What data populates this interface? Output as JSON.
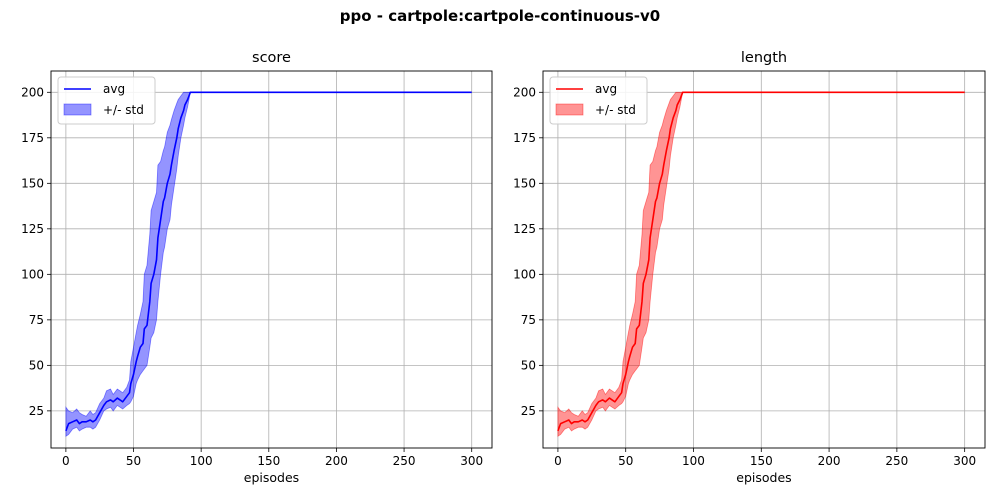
{
  "title": "ppo - cartpole:cartpole-continuous-v0",
  "colors": {
    "score": "#0000ff",
    "length": "#ff0000",
    "grid": "#b0b0b0"
  },
  "chart_data": [
    {
      "type": "line",
      "title": "score",
      "xlabel": "episodes",
      "ylabel": "",
      "xlim": [
        -11,
        315
      ],
      "ylim": [
        4.6,
        211.7
      ],
      "xticks": [
        0,
        50,
        100,
        150,
        200,
        250,
        300
      ],
      "yticks": [
        25,
        50,
        75,
        100,
        125,
        150,
        175,
        200
      ],
      "grid": true,
      "legend_position": "top-left",
      "legend": [
        "avg",
        "+/- std"
      ],
      "series": [
        {
          "name": "avg",
          "x": [
            0,
            2,
            5,
            8,
            10,
            12,
            15,
            18,
            20,
            22,
            25,
            28,
            30,
            33,
            35,
            38,
            40,
            42,
            45,
            47,
            48,
            50,
            52,
            53,
            55,
            57,
            58,
            60,
            62,
            63,
            65,
            67,
            68,
            70,
            72,
            73,
            75,
            77,
            78,
            80,
            82,
            83,
            85,
            87,
            88,
            90,
            91,
            92,
            93,
            300
          ],
          "values": [
            14,
            18,
            19,
            20,
            18,
            19,
            19,
            20,
            19,
            20,
            24,
            28,
            30,
            31,
            30,
            32,
            31,
            30,
            33,
            35,
            40,
            45,
            52,
            55,
            60,
            62,
            70,
            72,
            85,
            95,
            100,
            108,
            120,
            130,
            140,
            142,
            150,
            155,
            160,
            168,
            175,
            180,
            186,
            190,
            193,
            196,
            198,
            200,
            200,
            200
          ]
        },
        {
          "name": "+/- std",
          "x": [
            0,
            2,
            5,
            8,
            10,
            12,
            15,
            18,
            20,
            22,
            25,
            28,
            30,
            33,
            35,
            38,
            40,
            42,
            45,
            47,
            48,
            50,
            52,
            53,
            55,
            57,
            58,
            60,
            62,
            63,
            65,
            67,
            68,
            70,
            72,
            73,
            75,
            77,
            78,
            80,
            82,
            83,
            85,
            87,
            88,
            90,
            91,
            92,
            93,
            300
          ],
          "upper": [
            27,
            25,
            24,
            26,
            24,
            23,
            22,
            25,
            23,
            24,
            29,
            32,
            36,
            37,
            34,
            37,
            36,
            35,
            38,
            42,
            52,
            60,
            68,
            72,
            78,
            85,
            100,
            105,
            122,
            135,
            140,
            145,
            160,
            162,
            168,
            170,
            178,
            182,
            185,
            190,
            194,
            196,
            198,
            200,
            200,
            200,
            200,
            200,
            200,
            200
          ],
          "lower": [
            11,
            12,
            15,
            16,
            14,
            15,
            16,
            16,
            15,
            16,
            20,
            25,
            26,
            27,
            25,
            28,
            27,
            26,
            28,
            29,
            30,
            33,
            40,
            42,
            45,
            47,
            48,
            50,
            60,
            65,
            68,
            75,
            85,
            100,
            112,
            115,
            125,
            130,
            138,
            148,
            158,
            165,
            175,
            182,
            186,
            192,
            196,
            200,
            200,
            200
          ]
        }
      ]
    },
    {
      "type": "line",
      "title": "length",
      "xlabel": "episodes",
      "ylabel": "",
      "xlim": [
        -11,
        315
      ],
      "ylim": [
        4.6,
        211.7
      ],
      "xticks": [
        0,
        50,
        100,
        150,
        200,
        250,
        300
      ],
      "yticks": [
        25,
        50,
        75,
        100,
        125,
        150,
        175,
        200
      ],
      "grid": true,
      "legend_position": "top-left",
      "legend": [
        "avg",
        "+/- std"
      ],
      "series": [
        {
          "name": "avg",
          "x": [
            0,
            2,
            5,
            8,
            10,
            12,
            15,
            18,
            20,
            22,
            25,
            28,
            30,
            33,
            35,
            38,
            40,
            42,
            45,
            47,
            48,
            50,
            52,
            53,
            55,
            57,
            58,
            60,
            62,
            63,
            65,
            67,
            68,
            70,
            72,
            73,
            75,
            77,
            78,
            80,
            82,
            83,
            85,
            87,
            88,
            90,
            91,
            92,
            93,
            300
          ],
          "values": [
            14,
            18,
            19,
            20,
            18,
            19,
            19,
            20,
            19,
            20,
            24,
            28,
            30,
            31,
            30,
            32,
            31,
            30,
            33,
            35,
            40,
            45,
            52,
            55,
            60,
            62,
            70,
            72,
            85,
            95,
            100,
            108,
            120,
            130,
            140,
            142,
            150,
            155,
            160,
            168,
            175,
            180,
            186,
            190,
            193,
            196,
            198,
            200,
            200,
            200
          ]
        },
        {
          "name": "+/- std",
          "x": [
            0,
            2,
            5,
            8,
            10,
            12,
            15,
            18,
            20,
            22,
            25,
            28,
            30,
            33,
            35,
            38,
            40,
            42,
            45,
            47,
            48,
            50,
            52,
            53,
            55,
            57,
            58,
            60,
            62,
            63,
            65,
            67,
            68,
            70,
            72,
            73,
            75,
            77,
            78,
            80,
            82,
            83,
            85,
            87,
            88,
            90,
            91,
            92,
            93,
            300
          ],
          "upper": [
            27,
            25,
            24,
            26,
            24,
            23,
            22,
            25,
            23,
            24,
            29,
            32,
            36,
            37,
            34,
            37,
            36,
            35,
            38,
            42,
            52,
            60,
            68,
            72,
            78,
            85,
            100,
            105,
            122,
            135,
            140,
            145,
            160,
            162,
            168,
            170,
            178,
            182,
            185,
            190,
            194,
            196,
            198,
            200,
            200,
            200,
            200,
            200,
            200,
            200
          ],
          "lower": [
            11,
            12,
            15,
            16,
            14,
            15,
            16,
            16,
            15,
            16,
            20,
            25,
            26,
            27,
            25,
            28,
            27,
            26,
            28,
            29,
            30,
            33,
            40,
            42,
            45,
            47,
            48,
            50,
            60,
            65,
            68,
            75,
            85,
            100,
            112,
            115,
            125,
            130,
            138,
            148,
            158,
            165,
            175,
            182,
            186,
            192,
            196,
            200,
            200,
            200
          ]
        }
      ]
    }
  ]
}
